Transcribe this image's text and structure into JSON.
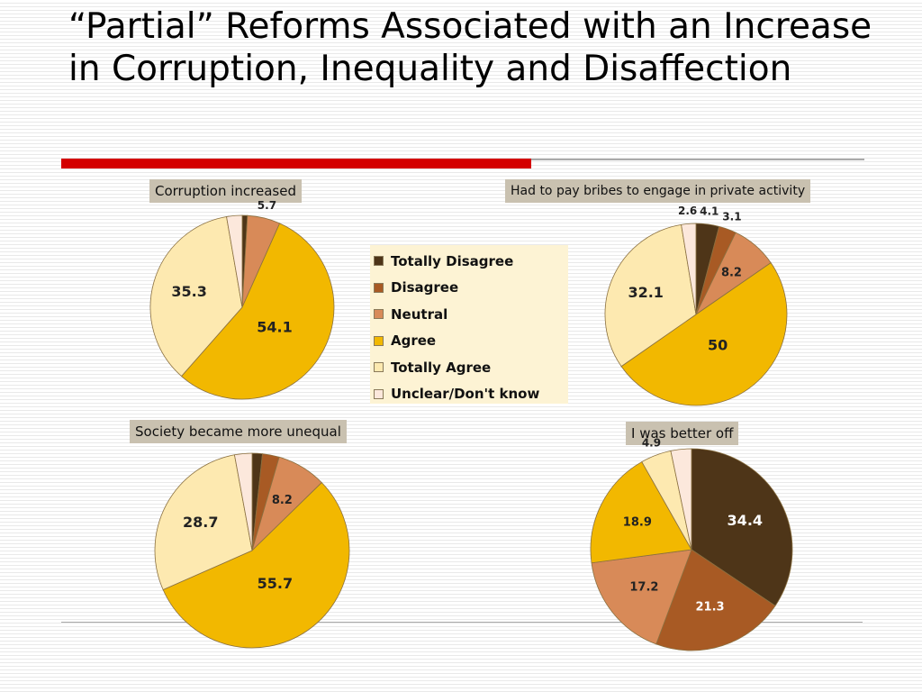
{
  "title": "“Partial” Reforms Associated with an Increase in Corruption, Inequality and Disaffection",
  "colors": {
    "accent_red": "#d40000",
    "rule_gray": "#aaaaaa",
    "label_bg": "#c9c1b0",
    "legend_bg": "#fdf3d4"
  },
  "legend": [
    {
      "label": "Totally Disagree",
      "color": "#4e3518"
    },
    {
      "label": "Disagree",
      "color": "#a85a24"
    },
    {
      "label": "Neutral",
      "color": "#d88a58"
    },
    {
      "label": "Agree",
      "color": "#f2b800"
    },
    {
      "label": "Totally Agree",
      "color": "#fde9b0"
    },
    {
      "label": "Unclear/Don't know",
      "color": "#fce8dc"
    }
  ],
  "chart_data": [
    {
      "type": "pie",
      "title": "Corruption increased",
      "categories": [
        "Totally Disagree",
        "Disagree",
        "Neutral",
        "Agree",
        "Totally Agree",
        "Unclear/Don't know"
      ],
      "values": [
        0.9,
        0,
        5.7,
        54.1,
        35.3,
        2.7
      ],
      "value_labels": [
        "",
        "",
        "5.7",
        "54.1",
        "35.3",
        ""
      ]
    },
    {
      "type": "pie",
      "title": "Had to pay bribes to engage in private activity",
      "categories": [
        "Totally Disagree",
        "Disagree",
        "Neutral",
        "Agree",
        "Totally Agree",
        "Unclear/Don't know"
      ],
      "values": [
        4.1,
        3.1,
        8.2,
        50,
        32.1,
        2.6
      ],
      "value_labels": [
        "4.1",
        "3.1",
        "8.2",
        "50",
        "32.1",
        "2.6"
      ]
    },
    {
      "type": "pie",
      "title": "Society became more unequal",
      "categories": [
        "Totally Disagree",
        "Disagree",
        "Neutral",
        "Agree",
        "Totally Agree",
        "Unclear/Don't know"
      ],
      "values": [
        1.7,
        2.8,
        8.2,
        55.7,
        28.7,
        2.9
      ],
      "value_labels": [
        "",
        "",
        "8.2",
        "55.7",
        "28.7",
        ""
      ]
    },
    {
      "type": "pie",
      "title": "I was better off",
      "categories": [
        "Totally Disagree",
        "Disagree",
        "Neutral",
        "Agree",
        "Totally Agree",
        "Unclear/Don't know"
      ],
      "values": [
        34.4,
        21.3,
        17.2,
        18.9,
        4.9,
        3.3
      ],
      "value_labels": [
        "34.4",
        "21.3",
        "17.2",
        "18.9",
        "4.9",
        ""
      ]
    }
  ]
}
